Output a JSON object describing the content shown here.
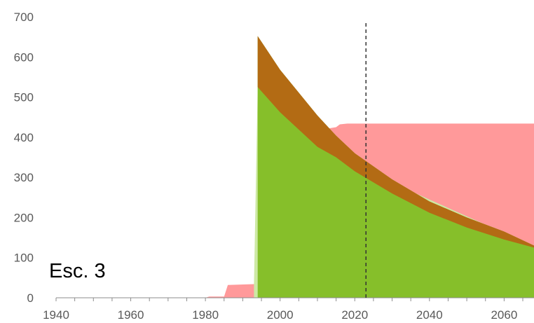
{
  "chart_data": {
    "type": "area",
    "annotation": "Esc. 3",
    "xlim": [
      1940,
      2068
    ],
    "ylim": [
      0,
      700
    ],
    "x_ticks": [
      1940,
      1960,
      1980,
      2000,
      2020,
      2040,
      2060
    ],
    "y_ticks": [
      0,
      100,
      200,
      300,
      400,
      500,
      600,
      700
    ],
    "grid": false,
    "legend": "none",
    "vline": {
      "x": 2023,
      "style": "dashed",
      "color": "#333333"
    },
    "series": [
      {
        "color": "#ff999a",
        "points": [
          [
            1940,
            0
          ],
          [
            1980,
            0
          ],
          [
            1981,
            3
          ],
          [
            1985,
            3
          ],
          [
            1986,
            32
          ],
          [
            1993,
            34
          ],
          [
            1994,
            36
          ],
          [
            1997,
            37
          ],
          [
            1998,
            42
          ],
          [
            2001,
            47
          ],
          [
            2003,
            55
          ],
          [
            2004,
            62
          ],
          [
            2005,
            65
          ],
          [
            2006,
            75
          ],
          [
            2007,
            80
          ],
          [
            2008,
            100
          ],
          [
            2009,
            115
          ],
          [
            2010,
            125
          ],
          [
            2010.6,
            165
          ],
          [
            2011,
            420
          ],
          [
            2013,
            422
          ],
          [
            2015,
            425
          ],
          [
            2016,
            432
          ],
          [
            2018,
            434
          ],
          [
            2068,
            434
          ]
        ]
      },
      {
        "color": "#cde9a4",
        "points": [
          [
            1993,
            34
          ],
          [
            1994,
            525
          ],
          [
            2000,
            462
          ],
          [
            2010,
            376
          ],
          [
            2011,
            367
          ],
          [
            2013,
            357
          ],
          [
            2015,
            350
          ],
          [
            2016,
            345
          ],
          [
            2068,
            128
          ]
        ]
      },
      {
        "color": "#86bf2a",
        "points": [
          [
            1994,
            652
          ],
          [
            2000,
            568
          ],
          [
            2010,
            454
          ],
          [
            2015,
            404
          ],
          [
            2020,
            360
          ],
          [
            2030,
            295
          ],
          [
            2040,
            240
          ],
          [
            2050,
            200
          ],
          [
            2060,
            165
          ],
          [
            2068,
            130
          ]
        ]
      }
    ],
    "bands": [
      {
        "color": "#b36b14",
        "upper": [
          [
            1994,
            652
          ],
          [
            2000,
            568
          ],
          [
            2010,
            454
          ],
          [
            2015,
            404
          ],
          [
            2020,
            360
          ],
          [
            2030,
            295
          ],
          [
            2040,
            240
          ],
          [
            2050,
            200
          ],
          [
            2060,
            165
          ],
          [
            2068,
            130
          ]
        ],
        "lower": [
          [
            1994,
            525
          ],
          [
            2000,
            462
          ],
          [
            2010,
            376
          ],
          [
            2015,
            350
          ],
          [
            2020,
            315
          ],
          [
            2030,
            260
          ],
          [
            2040,
            212
          ],
          [
            2050,
            175
          ],
          [
            2060,
            145
          ],
          [
            2068,
            125
          ]
        ]
      }
    ]
  }
}
